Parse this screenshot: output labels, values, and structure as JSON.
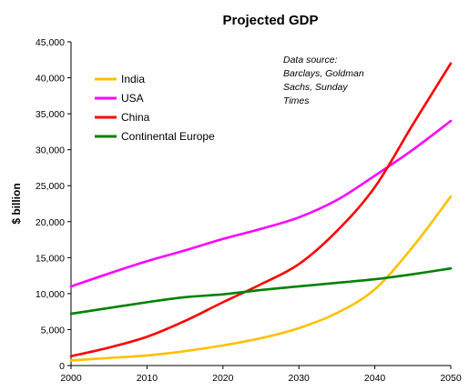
{
  "chart_data": {
    "type": "line",
    "title": "Projected GDP",
    "xlabel": "",
    "ylabel": "$ billion",
    "xlim": [
      2000,
      2050
    ],
    "ylim": [
      0,
      45000
    ],
    "x_ticks": [
      2000,
      2010,
      2020,
      2030,
      2040,
      2050
    ],
    "x_tick_labels": [
      "2000",
      "2010",
      "2020",
      "2030",
      "2040",
      "2050"
    ],
    "y_ticks": [
      0,
      5000,
      10000,
      15000,
      20000,
      25000,
      30000,
      35000,
      40000,
      45000
    ],
    "y_tick_labels": [
      "0",
      "5,000",
      "10,000",
      "15,000",
      "20,000",
      "25,000",
      "30,000",
      "35,000",
      "40,000",
      "45,000"
    ],
    "grid": false,
    "legend_position": "top-left",
    "annotation": [
      "Data source:",
      "Barclays, Goldman",
      "Sachs, Sunday",
      "Times"
    ],
    "series": [
      {
        "name": "India",
        "color": "#FFC000",
        "x": [
          2000,
          2005,
          2010,
          2015,
          2020,
          2025,
          2030,
          2035,
          2040,
          2045,
          2050
        ],
        "y": [
          700,
          1050,
          1400,
          2000,
          2800,
          3800,
          5200,
          7300,
          10600,
          16500,
          23500
        ]
      },
      {
        "name": "USA",
        "color": "#FF00FF",
        "x": [
          2000,
          2005,
          2010,
          2015,
          2020,
          2025,
          2030,
          2035,
          2040,
          2045,
          2050
        ],
        "y": [
          11000,
          12800,
          14500,
          16000,
          17600,
          19000,
          20600,
          23000,
          26400,
          30000,
          34000
        ]
      },
      {
        "name": "China",
        "color": "#FF0000",
        "x": [
          2000,
          2005,
          2010,
          2015,
          2020,
          2025,
          2030,
          2035,
          2040,
          2045,
          2050
        ],
        "y": [
          1300,
          2500,
          4000,
          6200,
          8800,
          11300,
          14100,
          18700,
          24800,
          33500,
          42000
        ]
      },
      {
        "name": "Continental Europe",
        "color": "#008000",
        "x": [
          2000,
          2005,
          2010,
          2015,
          2020,
          2025,
          2030,
          2035,
          2040,
          2045,
          2050
        ],
        "y": [
          7200,
          8000,
          8800,
          9500,
          9900,
          10500,
          11000,
          11500,
          12000,
          12700,
          13500
        ]
      }
    ]
  }
}
